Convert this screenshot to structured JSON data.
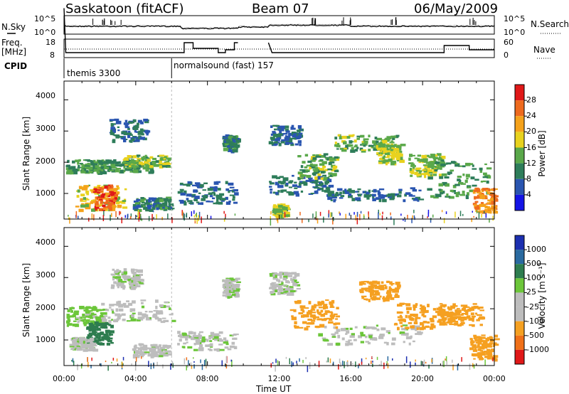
{
  "header": {
    "station": "Saskatoon (fitACF)",
    "beam": "Beam 07",
    "date": "06/May/2009"
  },
  "noise_panel": {
    "left_label": "N.Sky",
    "right_label": "N.Search",
    "left_ticks": [
      "10^5",
      "10^0"
    ],
    "right_ticks": [
      "10^5",
      "10^0"
    ]
  },
  "freq_panel": {
    "left_label_1": "Freq.",
    "left_label_2": "[MHz]",
    "right_label": "Nave",
    "left_ticks": [
      "18",
      "8"
    ],
    "right_ticks": [
      "60",
      "0"
    ]
  },
  "cpid": {
    "label": "CPID",
    "program_1": "themis 3300",
    "program_2": "normalsound (fast) 157"
  },
  "power_panel": {
    "ylabel": "Slant Range [km]",
    "colorbar_label": "Power [dB]",
    "colorbar_ticks": [
      "28",
      "24",
      "20",
      "16",
      "12",
      "8",
      "4"
    ]
  },
  "velocity_panel": {
    "ylabel": "Slant Range [km]",
    "colorbar_label": "Velocity [m s⁻¹]",
    "colorbar_ticks": [
      "1000",
      "500",
      "100",
      "25",
      "-25",
      "-100",
      "-500",
      "-1000"
    ]
  },
  "xaxis": {
    "label": "Time UT",
    "ticks": [
      "00:00",
      "04:00",
      "08:00",
      "12:00",
      "16:00",
      "20:00",
      "00:00"
    ]
  },
  "yticks": [
    "4000",
    "3000",
    "2000",
    "1000"
  ],
  "colors": {
    "power_scale": [
      "#1414e6",
      "#2a55b0",
      "#2e7d5a",
      "#5aa84a",
      "#e8d21e",
      "#f5a21b",
      "#ee6a1e",
      "#e01818"
    ],
    "velocity_scale": [
      "#1c2fb0",
      "#2a6aa0",
      "#2e7d4f",
      "#6cc63a",
      "#bdbdbd",
      "#bdbdbd",
      "#f5a021",
      "#f07018",
      "#e01818"
    ]
  },
  "chart_data": {
    "type": "heatmap",
    "x_range_hours": [
      0,
      24
    ],
    "y_range_km": [
      180,
      4600
    ],
    "data_gap_hours": [
      9.7,
      11.4
    ],
    "program_change_hour": 6.0,
    "power_regions_db": [
      {
        "t": [
          0.1,
          2.2
        ],
        "r": [
          1700,
          2100
        ],
        "value": 12
      },
      {
        "t": [
          0.6,
          3.4
        ],
        "r": [
          500,
          1300
        ],
        "value": 18
      },
      {
        "t": [
          1.6,
          2.8
        ],
        "r": [
          500,
          1300
        ],
        "value": 26
      },
      {
        "t": [
          1.8,
          4.8
        ],
        "r": [
          1700,
          2100
        ],
        "value": 12
      },
      {
        "t": [
          2.5,
          4.6
        ],
        "r": [
          2700,
          3400
        ],
        "value": 8
      },
      {
        "t": [
          3.2,
          5.8
        ],
        "r": [
          1900,
          2250
        ],
        "value": 14
      },
      {
        "t": [
          3.8,
          5.9
        ],
        "r": [
          500,
          900
        ],
        "value": 10
      },
      {
        "t": [
          6.3,
          9.5
        ],
        "r": [
          700,
          1400
        ],
        "value": 8
      },
      {
        "t": [
          8.8,
          9.6
        ],
        "r": [
          2400,
          2900
        ],
        "value": 10
      },
      {
        "t": [
          11.4,
          13.2
        ],
        "r": [
          2600,
          3200
        ],
        "value": 8
      },
      {
        "t": [
          11.4,
          14.8
        ],
        "r": [
          1000,
          1600
        ],
        "value": 8
      },
      {
        "t": [
          11.6,
          12.4
        ],
        "r": [
          300,
          700
        ],
        "value": 16
      },
      {
        "t": [
          13.0,
          15.2
        ],
        "r": [
          1500,
          2300
        ],
        "value": 14
      },
      {
        "t": [
          15.0,
          18.6
        ],
        "r": [
          2400,
          2900
        ],
        "value": 14
      },
      {
        "t": [
          14.5,
          19.8
        ],
        "r": [
          800,
          1200
        ],
        "value": 8
      },
      {
        "t": [
          17.4,
          18.8
        ],
        "r": [
          2000,
          2600
        ],
        "value": 16
      },
      {
        "t": [
          19.2,
          21.2
        ],
        "r": [
          1600,
          2300
        ],
        "value": 16
      },
      {
        "t": [
          20.2,
          23.6
        ],
        "r": [
          900,
          2100
        ],
        "value": 12
      },
      {
        "t": [
          22.8,
          24.0
        ],
        "r": [
          400,
          1200
        ],
        "value": 24
      }
    ],
    "velocity_regions_ms": [
      {
        "t": [
          0.1,
          2.2
        ],
        "r": [
          1500,
          2100
        ],
        "value": 60
      },
      {
        "t": [
          1.2,
          2.6
        ],
        "r": [
          900,
          1600
        ],
        "value": 150
      },
      {
        "t": [
          0.3,
          1.6
        ],
        "r": [
          700,
          1100
        ],
        "value": 0
      },
      {
        "t": [
          2.0,
          6.0
        ],
        "r": [
          1600,
          2300
        ],
        "value": 0
      },
      {
        "t": [
          2.6,
          4.2
        ],
        "r": [
          2700,
          3300
        ],
        "value": 0
      },
      {
        "t": [
          3.8,
          5.8
        ],
        "r": [
          500,
          900
        ],
        "value": 0
      },
      {
        "t": [
          6.3,
          9.5
        ],
        "r": [
          700,
          1300
        ],
        "value": 0
      },
      {
        "t": [
          8.8,
          9.6
        ],
        "r": [
          2400,
          3000
        ],
        "value": 0
      },
      {
        "t": [
          11.4,
          13.0
        ],
        "r": [
          2500,
          3200
        ],
        "value": 0
      },
      {
        "t": [
          12.6,
          15.2
        ],
        "r": [
          1400,
          2300
        ],
        "value": -300
      },
      {
        "t": [
          14.0,
          19.8
        ],
        "r": [
          900,
          1500
        ],
        "value": 0
      },
      {
        "t": [
          16.4,
          18.6
        ],
        "r": [
          2300,
          2900
        ],
        "value": -300
      },
      {
        "t": [
          18.4,
          21.2
        ],
        "r": [
          1400,
          2200
        ],
        "value": -300
      },
      {
        "t": [
          21.0,
          23.2
        ],
        "r": [
          1500,
          2200
        ],
        "value": -150
      },
      {
        "t": [
          22.6,
          24.0
        ],
        "r": [
          400,
          1200
        ],
        "value": -150
      }
    ]
  }
}
